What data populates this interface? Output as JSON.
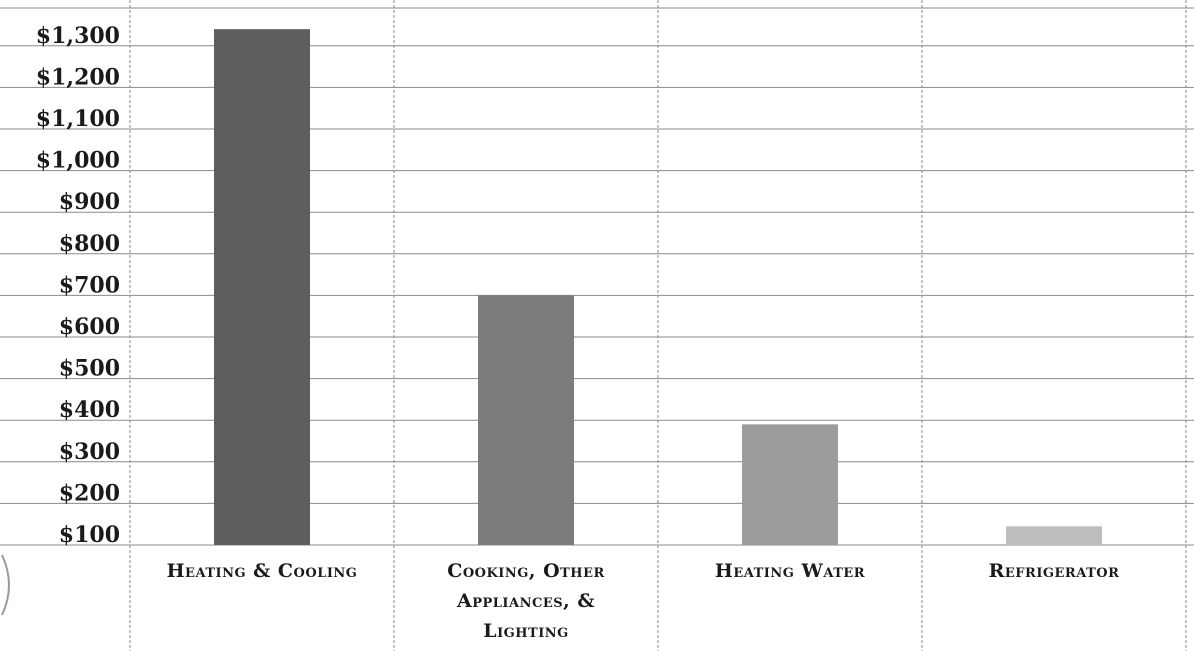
{
  "chart_data": {
    "type": "bar",
    "categories": [
      [
        "Heating & Cooling"
      ],
      [
        "Cooking, Other",
        "Appliances, &",
        "Lighting"
      ],
      [
        "Heating Water"
      ],
      [
        "Refrigerator"
      ]
    ],
    "values": [
      1340,
      700,
      390,
      145
    ],
    "bar_colors": [
      "#5e5e60",
      "#7c7c7f",
      "#9c9c9f",
      "#bdbdc0"
    ],
    "ylim": [
      100,
      1350
    ],
    "y_ticks": [
      100,
      200,
      300,
      400,
      500,
      600,
      700,
      800,
      900,
      1000,
      1100,
      1200,
      1300
    ],
    "y_tick_labels": [
      "$100",
      "$200",
      "$300",
      "$400",
      "$500",
      "$600",
      "$700",
      "$800",
      "$900",
      "$1,000",
      "$1,100",
      "$1,200",
      "$1,300"
    ],
    "grid": true,
    "title": "",
    "xlabel": "",
    "ylabel": ""
  }
}
